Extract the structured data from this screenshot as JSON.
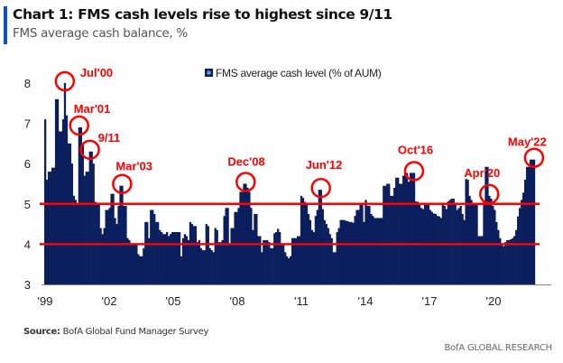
{
  "header": {
    "title": "Chart 1: FMS cash levels rise to highest since 9/11",
    "subtitle": "FMS average cash balance, %"
  },
  "footer": {
    "source_label": "Source:",
    "source_text": "BofA Global Fund Manager Survey",
    "brand": "BofA GLOBAL RESEARCH"
  },
  "chart_data": {
    "type": "bar",
    "frequency": "monthly",
    "start": "1999-08",
    "end": "2022-05",
    "series": [
      {
        "name": "FMS average cash level (% of AUM)",
        "color": "#0b1f5e",
        "values": [
          7.1,
          5.6,
          5.8,
          5.8,
          5.9,
          5.9,
          7.6,
          7.6,
          6.8,
          6.8,
          7.1,
          8.0,
          7.2,
          6.5,
          6.5,
          6.0,
          5.2,
          5.1,
          5.0,
          6.9,
          6.9,
          6.5,
          5.7,
          5.8,
          5.8,
          6.3,
          6.3,
          6.0,
          5.05,
          5.0,
          5.0,
          4.4,
          4.25,
          4.4,
          4.85,
          4.85,
          4.9,
          5.25,
          5.25,
          4.65,
          4.5,
          4.95,
          5.45,
          5.45,
          4.95,
          4.95,
          4.15,
          4.1,
          4.0,
          4.0,
          4.0,
          4.0,
          3.75,
          3.7,
          3.7,
          3.9,
          4.55,
          4.55,
          4.15,
          4.85,
          4.85,
          4.75,
          4.55,
          4.55,
          4.35,
          4.3,
          4.25,
          4.25,
          4.3,
          4.2,
          4.25,
          4.3,
          4.3,
          4.3,
          4.3,
          4.3,
          3.7,
          4.15,
          4.25,
          4.2,
          4.1,
          4.55,
          4.5,
          4.45,
          4.45,
          4.05,
          4.1,
          3.9,
          3.85,
          3.85,
          4.5,
          4.45,
          3.9,
          3.85,
          3.8,
          4.4,
          4.35,
          4.05,
          4.05,
          4.1,
          4.7,
          4.9,
          4.9,
          4.0,
          4.4,
          4.4,
          4.8,
          4.8,
          4.9,
          5.3,
          5.3,
          5.5,
          5.5,
          5.4,
          5.3,
          4.9,
          4.35,
          4.75,
          4.75,
          4.2,
          4.2,
          3.8,
          4.1,
          4.1,
          4.1,
          4.05,
          3.9,
          3.9,
          4.27,
          4.3,
          4.38,
          4.3,
          4.0,
          4.0,
          3.8,
          3.7,
          3.65,
          3.7,
          4.15,
          4.15,
          4.15,
          4.2,
          4.2,
          5.2,
          5.15,
          5.05,
          5.0,
          4.75,
          4.6,
          4.35,
          4.3,
          4.7,
          4.85,
          5.35,
          5.35,
          4.87,
          4.6,
          4.5,
          4.4,
          4.25,
          4.15,
          3.8,
          3.8,
          4.3,
          4.4,
          4.6,
          4.6,
          4.6,
          4.58,
          4.57,
          4.55,
          4.55,
          4.53,
          4.7,
          4.85,
          4.85,
          5.0,
          5.0,
          4.55,
          5.1,
          4.95,
          4.95,
          4.75,
          4.7,
          4.65,
          4.65,
          4.65,
          4.65,
          4.65,
          5.45,
          5.45,
          5.5,
          5.5,
          5.2,
          5.2,
          5.4,
          5.65,
          5.65,
          5.5,
          5.5,
          5.7,
          5.77,
          5.77,
          5.55,
          5.77,
          5.77,
          5.77,
          5.06,
          5.05,
          5.0,
          4.9,
          4.87,
          5.02,
          5.02,
          5.0,
          4.85,
          4.8,
          4.76,
          4.75,
          4.7,
          4.69,
          4.65,
          5.0,
          4.95,
          4.87,
          5.06,
          5.1,
          5.13,
          5.13,
          5.02,
          4.85,
          4.9,
          4.95,
          4.75,
          4.6,
          5.62,
          5.6,
          5.2,
          5.1,
          5.02,
          5.0,
          5.0,
          4.2,
          4.2,
          4.2,
          5.06,
          5.92,
          5.92,
          5.2,
          5.13,
          4.95,
          4.85,
          4.55,
          4.35,
          4.15,
          4.0,
          3.95,
          4.05,
          4.1,
          4.1,
          4.12,
          4.15,
          4.2,
          4.35,
          4.69,
          4.9,
          5.1,
          5.28,
          5.6,
          5.92,
          5.92,
          6.1,
          6.1,
          6.1
        ]
      }
    ],
    "y_ticks": [
      "3",
      "4",
      "5",
      "6",
      "7",
      "8"
    ],
    "ylim": [
      3,
      8.5
    ],
    "x_ticks": [
      "'99",
      "'02",
      "'05",
      "'08",
      "'11",
      "'14",
      "'17",
      "'20"
    ],
    "reference_lines": [
      {
        "value": 5,
        "color": "#ff0000"
      },
      {
        "value": 4,
        "color": "#ff0000"
      }
    ],
    "annotations": [
      {
        "label": "Jul'00",
        "date": "2000-07"
      },
      {
        "label": "Mar'01",
        "date": "2001-03"
      },
      {
        "label": "9/11",
        "date": "2001-09"
      },
      {
        "label": "Mar'03",
        "date": "2003-03"
      },
      {
        "label": "Dec'08",
        "date": "2008-12"
      },
      {
        "label": "Jun'12",
        "date": "2012-06"
      },
      {
        "label": "Oct'16",
        "date": "2016-10"
      },
      {
        "label": "Apr'20",
        "date": "2020-04"
      },
      {
        "label": "May'22",
        "date": "2022-05"
      }
    ],
    "annotation_color": "#ff0000",
    "legend": {
      "label": "FMS average cash level (% of AUM)",
      "placement": "top-center"
    },
    "grid": false
  }
}
